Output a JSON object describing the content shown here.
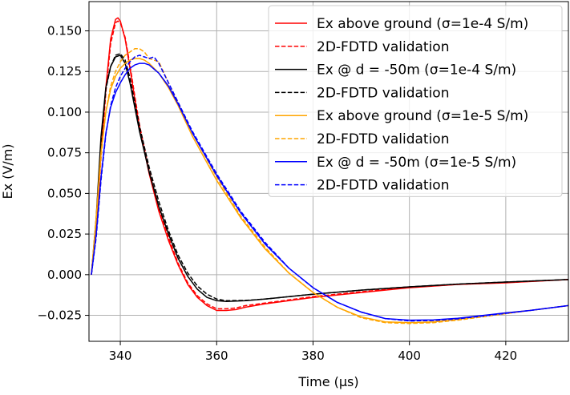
{
  "chart_data": {
    "type": "line",
    "title": "",
    "xlabel": "Time (µs)",
    "ylabel": "Ex (V/m)",
    "xlim": [
      333.5,
      433
    ],
    "ylim": [
      -0.041,
      0.168
    ],
    "xticks": [
      340,
      360,
      380,
      400,
      420
    ],
    "xtick_labels": [
      "340",
      "360",
      "380",
      "400",
      "420"
    ],
    "yticks": [
      -0.025,
      0.0,
      0.025,
      0.05,
      0.075,
      0.1,
      0.125,
      0.15
    ],
    "ytick_labels": [
      "−0.025",
      "0.000",
      "0.025",
      "0.050",
      "0.075",
      "0.100",
      "0.125",
      "0.150"
    ],
    "grid": true,
    "legend_position": "top-right",
    "series": [
      {
        "name": "Ex above ground (σ=1e-4 S/m)",
        "color": "#ff0000",
        "dash": "solid",
        "x": [
          334,
          335,
          336,
          337,
          338,
          339,
          339.5,
          340,
          341,
          342,
          343,
          344,
          346,
          348,
          350,
          352,
          354,
          356,
          358,
          360,
          362,
          364,
          366,
          370,
          375,
          380,
          390,
          400,
          410,
          420,
          433
        ],
        "y": [
          0.0,
          0.03,
          0.075,
          0.115,
          0.145,
          0.157,
          0.158,
          0.156,
          0.145,
          0.127,
          0.108,
          0.09,
          0.062,
          0.039,
          0.021,
          0.006,
          -0.006,
          -0.014,
          -0.019,
          -0.022,
          -0.022,
          -0.0215,
          -0.02,
          -0.018,
          -0.016,
          -0.014,
          -0.011,
          -0.008,
          -0.006,
          -0.005,
          -0.003
        ]
      },
      {
        "name": "2D-FDTD validation",
        "color": "#ff0000",
        "dash": "dashed",
        "x": [
          334,
          335,
          336,
          337,
          338,
          339,
          339.5,
          340,
          341,
          342,
          343,
          344,
          346,
          348,
          350,
          352,
          354,
          356,
          358,
          360,
          362,
          364,
          366,
          370,
          375,
          380,
          390,
          400,
          410,
          420,
          433
        ],
        "y": [
          0.0,
          0.027,
          0.072,
          0.112,
          0.142,
          0.155,
          0.156,
          0.155,
          0.146,
          0.129,
          0.11,
          0.092,
          0.064,
          0.041,
          0.023,
          0.007,
          -0.005,
          -0.013,
          -0.018,
          -0.021,
          -0.021,
          -0.0205,
          -0.019,
          -0.0175,
          -0.0155,
          -0.0135,
          -0.0105,
          -0.0078,
          -0.006,
          -0.0048,
          -0.003
        ]
      },
      {
        "name": "Ex @ d = -50m (σ=1e-4 S/m)",
        "color": "#000000",
        "dash": "solid",
        "x": [
          334,
          335,
          336,
          337,
          338,
          339,
          340,
          341,
          342,
          343,
          344,
          346,
          348,
          350,
          352,
          354,
          356,
          358,
          360,
          362,
          366,
          370,
          375,
          380,
          390,
          400,
          410,
          420,
          433
        ],
        "y": [
          0.0,
          0.035,
          0.085,
          0.115,
          0.128,
          0.134,
          0.135,
          0.13,
          0.118,
          0.103,
          0.088,
          0.063,
          0.042,
          0.025,
          0.01,
          -0.001,
          -0.009,
          -0.014,
          -0.016,
          -0.0165,
          -0.016,
          -0.015,
          -0.0135,
          -0.012,
          -0.0095,
          -0.0075,
          -0.0058,
          -0.0045,
          -0.003
        ]
      },
      {
        "name": "2D-FDTD validation",
        "color": "#000000",
        "dash": "dashed",
        "x": [
          334,
          335,
          336,
          337,
          338,
          339,
          340,
          341,
          342,
          343,
          344,
          346,
          348,
          350,
          352,
          354,
          356,
          358,
          360,
          362,
          366,
          370,
          375,
          380,
          390,
          400,
          410,
          420,
          433
        ],
        "y": [
          0.0,
          0.032,
          0.082,
          0.114,
          0.128,
          0.135,
          0.136,
          0.132,
          0.121,
          0.106,
          0.091,
          0.066,
          0.045,
          0.027,
          0.012,
          0.001,
          -0.007,
          -0.012,
          -0.015,
          -0.016,
          -0.0158,
          -0.015,
          -0.0135,
          -0.012,
          -0.0095,
          -0.0075,
          -0.0058,
          -0.0045,
          -0.003
        ]
      },
      {
        "name": "Ex above ground (σ=1e-5 S/m)",
        "color": "#ffa500",
        "dash": "solid",
        "x": [
          334,
          335,
          336,
          337,
          338,
          339,
          340,
          341,
          342,
          343,
          344,
          345,
          346,
          348,
          350,
          352,
          355,
          360,
          365,
          370,
          375,
          380,
          385,
          390,
          395,
          400,
          405,
          410,
          415,
          420,
          425,
          433
        ],
        "y": [
          0.0,
          0.035,
          0.075,
          0.1,
          0.114,
          0.122,
          0.127,
          0.13,
          0.132,
          0.133,
          0.133,
          0.132,
          0.13,
          0.124,
          0.115,
          0.104,
          0.085,
          0.058,
          0.035,
          0.016,
          0.001,
          -0.011,
          -0.02,
          -0.026,
          -0.029,
          -0.0295,
          -0.029,
          -0.0275,
          -0.0255,
          -0.0235,
          -0.022,
          -0.019
        ]
      },
      {
        "name": "2D-FDTD validation",
        "color": "#ffa500",
        "dash": "dashed",
        "x": [
          334,
          335,
          336,
          337,
          338,
          339,
          340,
          341,
          342,
          343,
          344,
          345,
          346,
          347,
          348,
          350,
          352,
          355,
          360,
          365,
          370,
          375,
          380,
          385,
          390,
          395,
          400,
          405,
          410,
          415,
          420,
          425,
          433
        ],
        "y": [
          0.0,
          0.033,
          0.073,
          0.1,
          0.116,
          0.125,
          0.131,
          0.135,
          0.137,
          0.139,
          0.139,
          0.137,
          0.133,
          0.132,
          0.131,
          0.118,
          0.106,
          0.087,
          0.06,
          0.036,
          0.017,
          0.001,
          -0.011,
          -0.02,
          -0.0265,
          -0.0295,
          -0.03,
          -0.0295,
          -0.028,
          -0.026,
          -0.024,
          -0.022,
          -0.019
        ]
      },
      {
        "name": "Ex @ d = -50m (σ=1e-5 S/m)",
        "color": "#0000ff",
        "dash": "solid",
        "x": [
          334,
          335,
          336,
          337,
          338,
          339,
          340,
          341,
          342,
          343,
          344,
          345,
          346,
          348,
          350,
          352,
          355,
          360,
          365,
          370,
          375,
          380,
          385,
          390,
          395,
          400,
          405,
          410,
          415,
          420,
          425,
          433
        ],
        "y": [
          0.0,
          0.025,
          0.06,
          0.087,
          0.103,
          0.112,
          0.118,
          0.123,
          0.127,
          0.129,
          0.13,
          0.13,
          0.129,
          0.124,
          0.116,
          0.105,
          0.087,
          0.061,
          0.038,
          0.019,
          0.004,
          -0.008,
          -0.017,
          -0.023,
          -0.027,
          -0.028,
          -0.0278,
          -0.0268,
          -0.0252,
          -0.0235,
          -0.022,
          -0.019
        ]
      },
      {
        "name": "2D-FDTD validation",
        "color": "#0000ff",
        "dash": "dashed",
        "x": [
          334,
          335,
          336,
          337,
          338,
          339,
          340,
          341,
          342,
          343,
          344,
          345,
          346,
          347,
          348,
          350,
          352,
          355,
          360,
          365,
          370,
          375,
          380,
          385,
          390,
          395,
          400,
          405,
          410,
          415,
          420,
          425,
          433
        ],
        "y": [
          0.0,
          0.023,
          0.058,
          0.086,
          0.104,
          0.115,
          0.122,
          0.127,
          0.131,
          0.134,
          0.135,
          0.134,
          0.133,
          0.134,
          0.13,
          0.118,
          0.106,
          0.088,
          0.062,
          0.039,
          0.02,
          0.004,
          -0.008,
          -0.017,
          -0.023,
          -0.027,
          -0.0285,
          -0.0282,
          -0.0272,
          -0.0255,
          -0.0238,
          -0.022,
          -0.019
        ]
      }
    ]
  }
}
